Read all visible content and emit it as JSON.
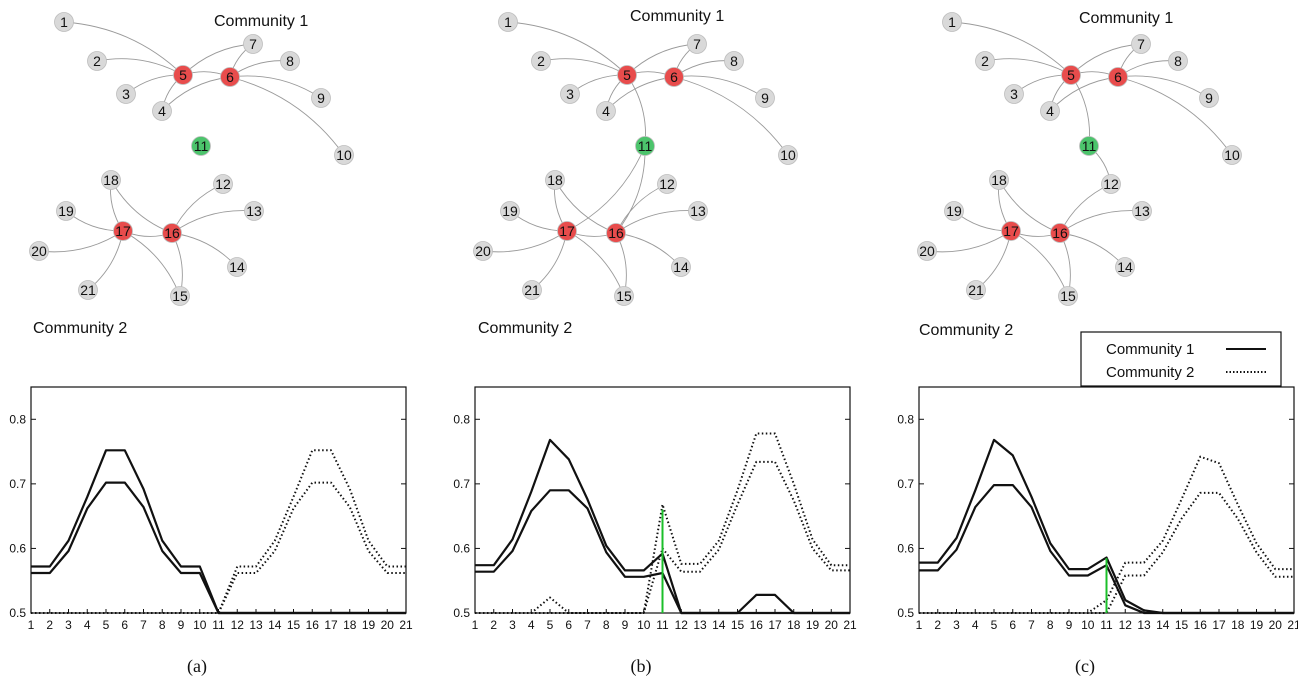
{
  "figure": {
    "panel_captions": [
      "(a)",
      "(b)",
      "(c)"
    ],
    "community_labels": [
      "Community 1",
      "Community 2"
    ],
    "legend": [
      {
        "label": "Community 1",
        "style": "solid"
      },
      {
        "label": "Community 2",
        "style": "dotted"
      }
    ],
    "colors": {
      "hub": "#e84c4c",
      "bridge": "#4cc46c",
      "node": "#d9d9d9",
      "node_stroke": "#bdbdbd",
      "edge": "#9a9a9a",
      "marker": "#1bbf2a",
      "line": "#111111"
    },
    "networks": [
      {
        "panel": "a",
        "hubs": [
          "5",
          "6",
          "16",
          "17"
        ],
        "bridge": "11",
        "nodes": [
          "1",
          "2",
          "3",
          "4",
          "5",
          "6",
          "7",
          "8",
          "9",
          "10",
          "11",
          "12",
          "13",
          "14",
          "15",
          "16",
          "17",
          "18",
          "19",
          "20",
          "21"
        ],
        "edges": [
          [
            "1",
            "5"
          ],
          [
            "2",
            "5"
          ],
          [
            "3",
            "5"
          ],
          [
            "4",
            "5"
          ],
          [
            "5",
            "6"
          ],
          [
            "5",
            "7"
          ],
          [
            "4",
            "6"
          ],
          [
            "6",
            "7"
          ],
          [
            "6",
            "8"
          ],
          [
            "6",
            "9"
          ],
          [
            "6",
            "10"
          ],
          [
            "16",
            "12"
          ],
          [
            "16",
            "13"
          ],
          [
            "16",
            "14"
          ],
          [
            "16",
            "15"
          ],
          [
            "16",
            "17"
          ],
          [
            "16",
            "18"
          ],
          [
            "17",
            "18"
          ],
          [
            "17",
            "19"
          ],
          [
            "17",
            "20"
          ],
          [
            "17",
            "21"
          ],
          [
            "17",
            "15"
          ]
        ]
      },
      {
        "panel": "b",
        "hubs": [
          "5",
          "6",
          "16",
          "17"
        ],
        "bridge": "11",
        "nodes": [
          "1",
          "2",
          "3",
          "4",
          "5",
          "6",
          "7",
          "8",
          "9",
          "10",
          "11",
          "12",
          "13",
          "14",
          "15",
          "16",
          "17",
          "18",
          "19",
          "20",
          "21"
        ],
        "edges": [
          [
            "1",
            "5"
          ],
          [
            "2",
            "5"
          ],
          [
            "3",
            "5"
          ],
          [
            "4",
            "5"
          ],
          [
            "5",
            "6"
          ],
          [
            "5",
            "7"
          ],
          [
            "4",
            "6"
          ],
          [
            "6",
            "7"
          ],
          [
            "6",
            "8"
          ],
          [
            "6",
            "9"
          ],
          [
            "6",
            "10"
          ],
          [
            "16",
            "12"
          ],
          [
            "16",
            "13"
          ],
          [
            "16",
            "14"
          ],
          [
            "16",
            "15"
          ],
          [
            "16",
            "17"
          ],
          [
            "16",
            "18"
          ],
          [
            "17",
            "18"
          ],
          [
            "17",
            "19"
          ],
          [
            "17",
            "20"
          ],
          [
            "17",
            "21"
          ],
          [
            "17",
            "15"
          ],
          [
            "5",
            "11"
          ],
          [
            "11",
            "16"
          ],
          [
            "11",
            "17"
          ]
        ]
      },
      {
        "panel": "c",
        "hubs": [
          "5",
          "6",
          "16",
          "17"
        ],
        "bridge": "11",
        "nodes": [
          "1",
          "2",
          "3",
          "4",
          "5",
          "6",
          "7",
          "8",
          "9",
          "10",
          "11",
          "12",
          "13",
          "14",
          "15",
          "16",
          "17",
          "18",
          "19",
          "20",
          "21"
        ],
        "edges": [
          [
            "1",
            "5"
          ],
          [
            "2",
            "5"
          ],
          [
            "3",
            "5"
          ],
          [
            "4",
            "5"
          ],
          [
            "5",
            "6"
          ],
          [
            "5",
            "7"
          ],
          [
            "4",
            "6"
          ],
          [
            "6",
            "7"
          ],
          [
            "6",
            "8"
          ],
          [
            "6",
            "9"
          ],
          [
            "6",
            "10"
          ],
          [
            "16",
            "12"
          ],
          [
            "16",
            "13"
          ],
          [
            "16",
            "14"
          ],
          [
            "16",
            "15"
          ],
          [
            "16",
            "17"
          ],
          [
            "16",
            "18"
          ],
          [
            "17",
            "18"
          ],
          [
            "17",
            "19"
          ],
          [
            "17",
            "20"
          ],
          [
            "17",
            "21"
          ],
          [
            "17",
            "15"
          ],
          [
            "5",
            "11"
          ],
          [
            "11",
            "12"
          ]
        ]
      }
    ]
  },
  "chart_data": [
    {
      "type": "line",
      "panel": "a",
      "x": [
        1,
        2,
        3,
        4,
        5,
        6,
        7,
        8,
        9,
        10,
        11,
        12,
        13,
        14,
        15,
        16,
        17,
        18,
        19,
        20,
        21
      ],
      "x_tick_labels": [
        "1",
        "2",
        "3",
        "4",
        "5",
        "6",
        "7",
        "8",
        "9",
        "10",
        "11",
        "12",
        "13",
        "14",
        "15",
        "16",
        "17",
        "18",
        "19",
        "20",
        "21"
      ],
      "ylim": [
        0.5,
        0.85
      ],
      "y_ticks": [
        0.5,
        0.6,
        0.7,
        0.8
      ],
      "y_tick_labels": [
        "0.5",
        "0.6",
        "0.7",
        "0.8"
      ],
      "marker_x": null,
      "series": [
        {
          "community": 1,
          "style": "solid",
          "values": [
            0.572,
            0.572,
            0.612,
            0.68,
            0.752,
            0.752,
            0.692,
            0.612,
            0.572,
            0.572,
            0.5,
            0.5,
            0.5,
            0.5,
            0.5,
            0.5,
            0.5,
            0.5,
            0.5,
            0.5,
            0.5
          ]
        },
        {
          "community": 1,
          "style": "solid",
          "values": [
            0.562,
            0.562,
            0.596,
            0.662,
            0.702,
            0.702,
            0.664,
            0.596,
            0.562,
            0.562,
            0.5,
            0.5,
            0.5,
            0.5,
            0.5,
            0.5,
            0.5,
            0.5,
            0.5,
            0.5,
            0.5
          ]
        },
        {
          "community": 2,
          "style": "dotted",
          "values": [
            0.5,
            0.5,
            0.5,
            0.5,
            0.5,
            0.5,
            0.5,
            0.5,
            0.5,
            0.5,
            0.5,
            0.572,
            0.572,
            0.612,
            0.68,
            0.752,
            0.752,
            0.692,
            0.612,
            0.572,
            0.572
          ]
        },
        {
          "community": 2,
          "style": "dotted",
          "values": [
            0.5,
            0.5,
            0.5,
            0.5,
            0.5,
            0.5,
            0.5,
            0.5,
            0.5,
            0.5,
            0.5,
            0.562,
            0.562,
            0.596,
            0.662,
            0.702,
            0.702,
            0.664,
            0.596,
            0.562,
            0.562
          ]
        }
      ]
    },
    {
      "type": "line",
      "panel": "b",
      "x": [
        1,
        2,
        3,
        4,
        5,
        6,
        7,
        8,
        9,
        10,
        11,
        12,
        13,
        14,
        15,
        16,
        17,
        18,
        19,
        20,
        21
      ],
      "x_tick_labels": [
        "1",
        "2",
        "3",
        "4",
        "5",
        "6",
        "7",
        "8",
        "9",
        "10",
        "11",
        "12",
        "13",
        "14",
        "15",
        "16",
        "17",
        "18",
        "19",
        "20",
        "21"
      ],
      "ylim": [
        0.5,
        0.85
      ],
      "y_ticks": [
        0.5,
        0.6,
        0.7,
        0.8
      ],
      "y_tick_labels": [
        "0.5",
        "0.6",
        "0.7",
        "0.8"
      ],
      "marker_x": 11,
      "marker_y": 0.66,
      "series": [
        {
          "community": 1,
          "style": "solid",
          "values": [
            0.574,
            0.574,
            0.614,
            0.688,
            0.768,
            0.738,
            0.676,
            0.604,
            0.566,
            0.566,
            0.592,
            0.5,
            0.5,
            0.5,
            0.5,
            0.528,
            0.528,
            0.5,
            0.5,
            0.5,
            0.5
          ]
        },
        {
          "community": 1,
          "style": "solid",
          "values": [
            0.564,
            0.564,
            0.596,
            0.658,
            0.69,
            0.69,
            0.662,
            0.594,
            0.556,
            0.556,
            0.562,
            0.5,
            0.5,
            0.5,
            0.5,
            0.5,
            0.5,
            0.5,
            0.5,
            0.5,
            0.5
          ]
        },
        {
          "community": 2,
          "style": "dotted",
          "values": [
            0.5,
            0.5,
            0.5,
            0.5,
            0.524,
            0.5,
            0.5,
            0.5,
            0.5,
            0.5,
            0.668,
            0.576,
            0.576,
            0.612,
            0.69,
            0.778,
            0.778,
            0.7,
            0.614,
            0.574,
            0.574
          ]
        },
        {
          "community": 2,
          "style": "dotted",
          "values": [
            0.5,
            0.5,
            0.5,
            0.5,
            0.5,
            0.5,
            0.5,
            0.5,
            0.5,
            0.5,
            0.6,
            0.564,
            0.564,
            0.598,
            0.668,
            0.734,
            0.734,
            0.674,
            0.6,
            0.566,
            0.566
          ]
        }
      ]
    },
    {
      "type": "line",
      "panel": "c",
      "x": [
        1,
        2,
        3,
        4,
        5,
        6,
        7,
        8,
        9,
        10,
        11,
        12,
        13,
        14,
        15,
        16,
        17,
        18,
        19,
        20,
        21
      ],
      "x_tick_labels": [
        "1",
        "2",
        "3",
        "4",
        "5",
        "6",
        "7",
        "8",
        "9",
        "10",
        "11",
        "12",
        "13",
        "14",
        "15",
        "16",
        "17",
        "18",
        "19",
        "20",
        "21"
      ],
      "ylim": [
        0.5,
        0.85
      ],
      "y_ticks": [
        0.5,
        0.6,
        0.7,
        0.8
      ],
      "y_tick_labels": [
        "0.5",
        "0.6",
        "0.7",
        "0.8"
      ],
      "marker_x": 11,
      "marker_y": 0.585,
      "series": [
        {
          "community": 1,
          "style": "solid",
          "values": [
            0.578,
            0.578,
            0.616,
            0.69,
            0.768,
            0.744,
            0.68,
            0.608,
            0.568,
            0.568,
            0.586,
            0.52,
            0.504,
            0.5,
            0.5,
            0.5,
            0.5,
            0.5,
            0.5,
            0.5,
            0.5
          ]
        },
        {
          "community": 1,
          "style": "solid",
          "values": [
            0.566,
            0.566,
            0.598,
            0.664,
            0.698,
            0.698,
            0.664,
            0.596,
            0.558,
            0.558,
            0.574,
            0.512,
            0.5,
            0.5,
            0.5,
            0.5,
            0.5,
            0.5,
            0.5,
            0.5,
            0.5
          ]
        },
        {
          "community": 2,
          "style": "dotted",
          "values": [
            0.5,
            0.5,
            0.5,
            0.5,
            0.5,
            0.5,
            0.5,
            0.5,
            0.5,
            0.5,
            0.52,
            0.578,
            0.578,
            0.612,
            0.676,
            0.742,
            0.732,
            0.668,
            0.608,
            0.568,
            0.568
          ]
        },
        {
          "community": 2,
          "style": "dotted",
          "values": [
            0.5,
            0.5,
            0.5,
            0.5,
            0.5,
            0.5,
            0.5,
            0.5,
            0.5,
            0.5,
            0.5,
            0.558,
            0.558,
            0.594,
            0.646,
            0.686,
            0.686,
            0.646,
            0.594,
            0.556,
            0.556
          ]
        }
      ]
    }
  ]
}
